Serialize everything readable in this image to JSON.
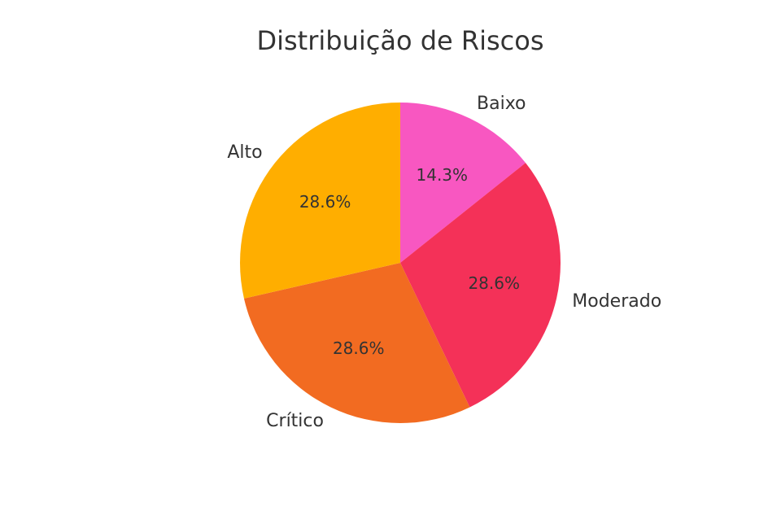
{
  "chart_data": {
    "type": "pie",
    "title": "Distribuição de Riscos",
    "categories": [
      "Baixo",
      "Moderado",
      "Crítico",
      "Alto"
    ],
    "values": [
      14.3,
      28.6,
      28.6,
      28.6
    ],
    "value_labels": [
      "14.3%",
      "28.6%",
      "28.6%",
      "28.6%"
    ],
    "colors": [
      "#f857c1",
      "#f43158",
      "#f26b21",
      "#ffae00"
    ]
  }
}
